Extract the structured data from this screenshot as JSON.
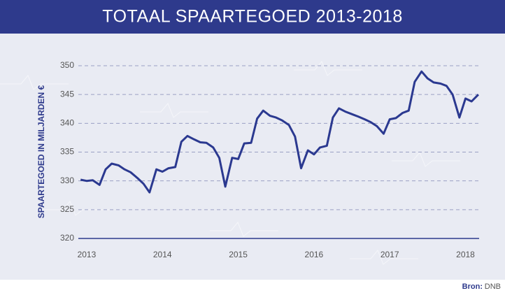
{
  "chart_data": {
    "type": "line",
    "title": "TOTAAL SPAARTEGOED 2013-2018",
    "y_label": "SPAARTEGOED IN MILJARDEN €",
    "source_label": "Bron:",
    "source": "DNB",
    "x": [
      2012.92,
      2013.0,
      2013.08,
      2013.17,
      2013.25,
      2013.33,
      2013.42,
      2013.5,
      2013.58,
      2013.67,
      2013.75,
      2013.83,
      2013.92,
      2014.0,
      2014.08,
      2014.17,
      2014.25,
      2014.33,
      2014.42,
      2014.5,
      2014.58,
      2014.67,
      2014.75,
      2014.83,
      2014.92,
      2015.0,
      2015.08,
      2015.17,
      2015.25,
      2015.33,
      2015.42,
      2015.5,
      2015.58,
      2015.67,
      2015.75,
      2015.83,
      2015.92,
      2016.0,
      2016.08,
      2016.17,
      2016.25,
      2016.33,
      2016.42,
      2016.5,
      2016.58,
      2016.67,
      2016.75,
      2016.83,
      2016.92,
      2017.0,
      2017.08,
      2017.17,
      2017.25,
      2017.33,
      2017.42,
      2017.5,
      2017.58,
      2017.67,
      2017.75,
      2017.83,
      2017.92,
      2018.0,
      2018.08,
      2018.17
    ],
    "series": [
      {
        "name": "Spaartegoed",
        "color": "#2b3990",
        "values": [
          330.2,
          330.0,
          330.1,
          329.3,
          332.0,
          333.0,
          332.7,
          332.0,
          331.5,
          330.5,
          329.5,
          328.0,
          332.0,
          331.6,
          332.2,
          332.4,
          336.8,
          337.8,
          337.2,
          336.7,
          336.6,
          335.8,
          334.0,
          329.0,
          334.0,
          333.8,
          336.5,
          336.6,
          340.8,
          342.2,
          341.3,
          341.0,
          340.5,
          339.7,
          337.7,
          332.2,
          335.3,
          334.6,
          335.8,
          336.1,
          341.0,
          342.6,
          342.0,
          341.6,
          341.2,
          340.7,
          340.2,
          339.5,
          338.2,
          340.7,
          340.9,
          341.8,
          342.2,
          347.2,
          349.0,
          347.8,
          347.1,
          346.9,
          346.5,
          345.0,
          341.0,
          344.3,
          343.8,
          345.0
        ]
      }
    ],
    "xlim": [
      2012.89,
      2018.18
    ],
    "xticks": [
      2013,
      2014,
      2015,
      2016,
      2017,
      2018
    ],
    "ylim": [
      320,
      350
    ],
    "yticks": [
      320,
      325,
      330,
      335,
      340,
      345,
      350
    ],
    "grid": true
  }
}
